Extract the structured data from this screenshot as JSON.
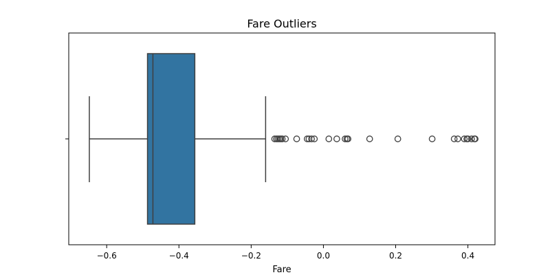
{
  "chart_data": {
    "type": "box",
    "title": "Fare Outliers",
    "xlabel": "Fare",
    "ylabel": "",
    "xlim": [
      -0.705,
      0.475
    ],
    "xticks": [
      -0.6,
      -0.4,
      -0.2,
      0.0,
      0.2,
      0.4
    ],
    "xtick_labels": [
      "−0.6",
      "−0.4",
      "−0.2",
      "0.0",
      "0.2",
      "0.4"
    ],
    "orientation": "horizontal",
    "grid": false,
    "box": {
      "whisker_low": -0.648,
      "q1": -0.487,
      "median": -0.472,
      "q3": -0.356,
      "whisker_high": -0.16
    },
    "outliers": [
      -0.135,
      -0.13,
      -0.126,
      -0.122,
      -0.118,
      -0.114,
      -0.105,
      -0.074,
      -0.045,
      -0.04,
      -0.033,
      -0.025,
      0.015,
      0.037,
      0.06,
      0.065,
      0.068,
      0.128,
      0.206,
      0.301,
      0.362,
      0.372,
      0.39,
      0.397,
      0.4,
      0.41,
      0.418,
      0.42
    ],
    "colors": {
      "box_fill": "#3274a1",
      "line": "#3f3f3f",
      "axis": "#000000"
    }
  }
}
